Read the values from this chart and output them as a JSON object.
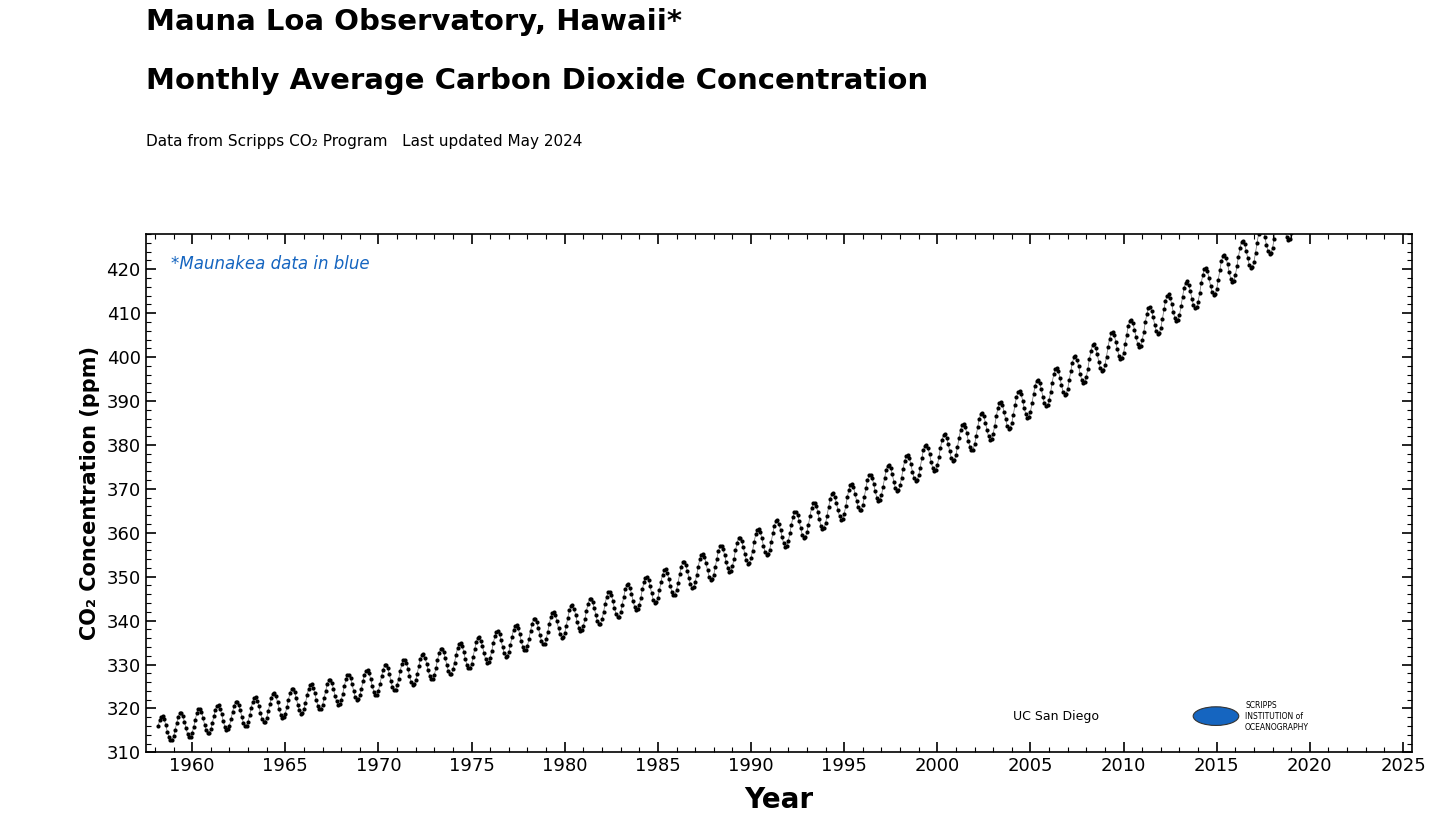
{
  "title_line1": "Mauna Loa Observatory, Hawaii*",
  "title_line2": "Monthly Average Carbon Dioxide Concentration",
  "subtitle": "Data from Scripps CO₂ Program   Last updated May 2024",
  "annotation": "*Maunakea data in blue",
  "xlabel": "Year",
  "ylabel": "CO₂ Concentration (ppm)",
  "xlim": [
    1957.5,
    2025.5
  ],
  "ylim": [
    310,
    428
  ],
  "yticks": [
    310,
    320,
    330,
    340,
    350,
    360,
    370,
    380,
    390,
    400,
    410,
    420
  ],
  "xticks": [
    1960,
    1965,
    1970,
    1975,
    1980,
    1985,
    1990,
    1995,
    2000,
    2005,
    2010,
    2015,
    2020,
    2025
  ],
  "dot_color": "#000000",
  "blue_dot_color": "#1565C0",
  "background_color": "#ffffff",
  "title_fontsize": 21,
  "subtitle_fontsize": 11,
  "annotation_color": "#1565C0",
  "annotation_fontsize": 12,
  "logo_uc_text": "UC San Diego",
  "logo_scripps_text": "SCRIPPS\nINSTITUTION of\nOCEANOGRAPHY"
}
